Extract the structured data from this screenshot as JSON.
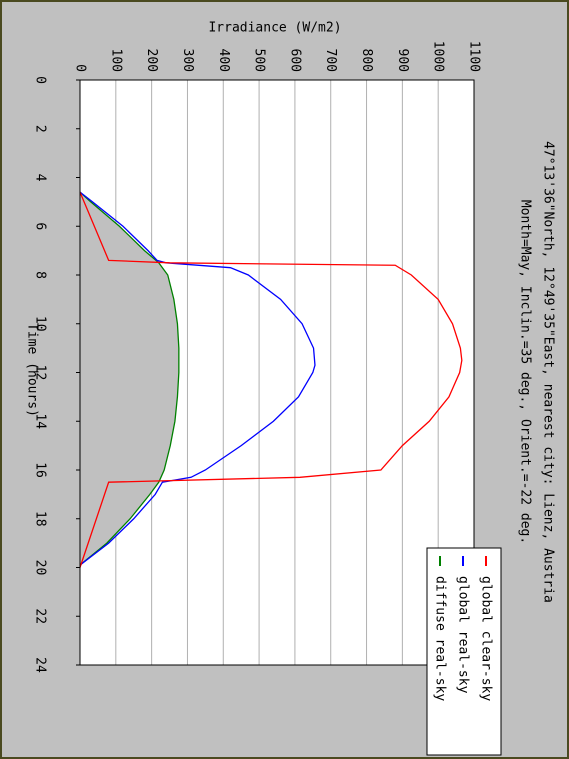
{
  "chart_data": {
    "type": "line",
    "title": "47°13'36\"North, 12°49'35\"East, nearest city: Lienz, Austria",
    "subtitle": "Month=May, Inclin.=35 deg., Orient.=-22 deg.",
    "x_label": "Time (hours)",
    "y_label": "Irradiance (W/m2)",
    "xlim": [
      0,
      24
    ],
    "xticks": [
      0,
      2,
      4,
      6,
      8,
      10,
      12,
      14,
      16,
      18,
      20,
      22,
      24
    ],
    "ylim": [
      0,
      1100
    ],
    "yticks": [
      0,
      100,
      200,
      300,
      400,
      500,
      600,
      700,
      800,
      900,
      1000,
      1100
    ],
    "grid": true,
    "fill_color": "#c0c0c0",
    "series": [
      {
        "name": "global clear-sky",
        "color": "#ff0000",
        "x": [
          4.6,
          7.4,
          7.5,
          7.6,
          8,
          9,
          10,
          11,
          11.5,
          12,
          13,
          14,
          15,
          16,
          16.3,
          16.5,
          20
        ],
        "values": [
          0,
          80,
          250,
          880,
          925,
          1000,
          1040,
          1062,
          1066,
          1060,
          1030,
          975,
          900,
          840,
          614,
          80,
          0
        ]
      },
      {
        "name": "global real-sky",
        "color": "#0000ff",
        "x": [
          4.6,
          5,
          6,
          7,
          7.4,
          7.5,
          7.7,
          8,
          9,
          10,
          11,
          11.7,
          12,
          13,
          14,
          15,
          16,
          16.3,
          16.5,
          17,
          18,
          19,
          19.9
        ],
        "values": [
          0,
          35,
          120,
          190,
          215,
          240,
          420,
          470,
          560,
          620,
          652,
          656,
          650,
          610,
          540,
          450,
          350,
          310,
          230,
          210,
          150,
          80,
          0
        ]
      },
      {
        "name": "diffuse real-sky",
        "color": "#008000",
        "x": [
          4.6,
          5,
          6,
          7,
          7.5,
          8,
          9,
          10,
          11,
          12,
          13,
          14,
          15,
          16,
          16.5,
          17,
          18,
          19,
          19.9
        ],
        "values": [
          0,
          30,
          110,
          180,
          220,
          245,
          262,
          272,
          276,
          276,
          272,
          265,
          252,
          235,
          220,
          195,
          140,
          75,
          0
        ]
      }
    ]
  }
}
